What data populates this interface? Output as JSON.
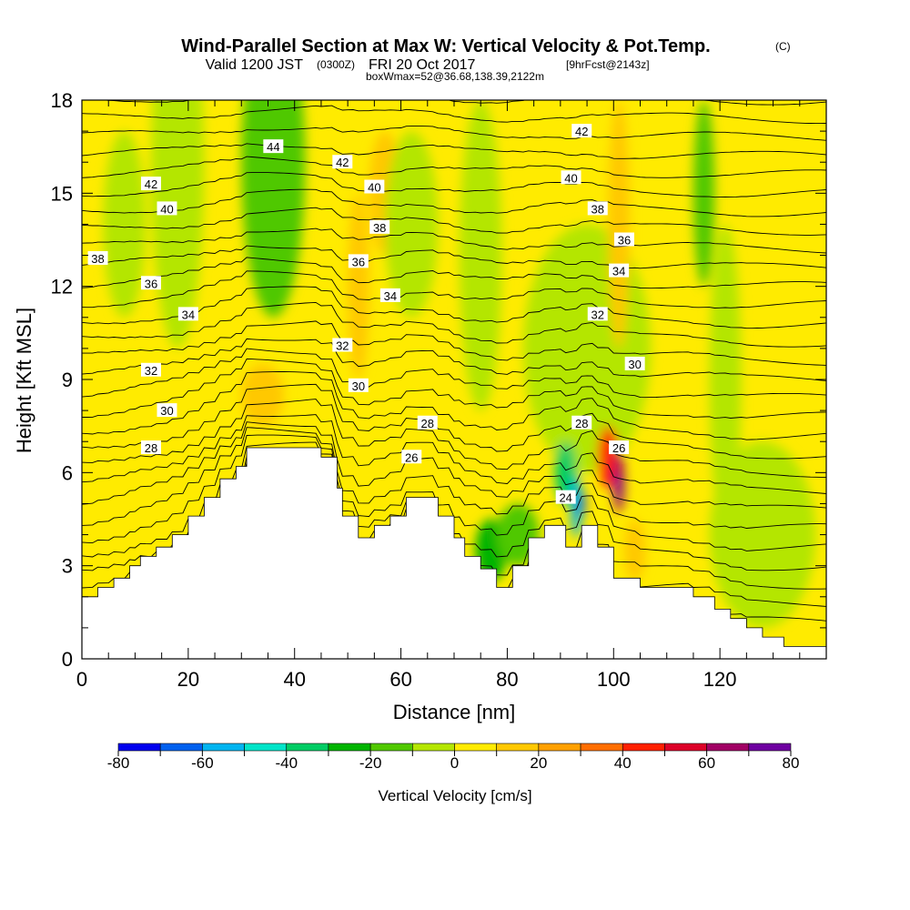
{
  "title": {
    "main": "Wind-Parallel Section at Max W: Vertical Velocity & Pot.Temp.",
    "copyright": "(C)",
    "valid_prefix": "Valid 1200 JST",
    "valid_utc": "(0300Z)",
    "valid_date": "FRI 20 Oct 2017",
    "forecast": "[9hrFcst@2143z]",
    "box": "boxWmax=52@36.68,138.39,2122m"
  },
  "colors": {
    "fill": [
      "#0000ee",
      "#0060ee",
      "#00b4f0",
      "#00e4c8",
      "#00cc64",
      "#00b400",
      "#50c800",
      "#b4e600",
      "#ffeb00",
      "#ffc800",
      "#ffa000",
      "#ff6e00",
      "#ff2000",
      "#dc0028",
      "#a00064",
      "#6e00a0"
    ],
    "background": "#ffeb00",
    "terrain": "#ffffff"
  },
  "chart_data": {
    "type": "heatmap",
    "xlabel": "Distance [nm]",
    "ylabel": "Height [Kft MSL]",
    "xlim": [
      0,
      140
    ],
    "ylim": [
      0,
      18
    ],
    "xticks": [
      "0",
      "20",
      "40",
      "60",
      "80",
      "100",
      "120"
    ],
    "yticks": [
      "0",
      "3",
      "6",
      "9",
      "12",
      "15",
      "18"
    ],
    "colorbar": {
      "label": "Vertical Velocity [cm/s]",
      "levels": [
        -80,
        -70,
        -60,
        -50,
        -40,
        -30,
        -20,
        -10,
        0,
        10,
        20,
        30,
        40,
        50,
        60,
        70,
        80
      ],
      "tick_labels": [
        "-80",
        "-60",
        "-40",
        "-20",
        "0",
        "20",
        "40",
        "60",
        "80"
      ]
    },
    "terrain": [
      [
        0,
        2
      ],
      [
        3,
        2
      ],
      [
        3,
        2.3
      ],
      [
        6,
        2.3
      ],
      [
        6,
        2.6
      ],
      [
        9,
        2.6
      ],
      [
        9,
        3
      ],
      [
        11,
        3
      ],
      [
        11,
        3.3
      ],
      [
        14,
        3.3
      ],
      [
        14,
        3.6
      ],
      [
        17,
        3.6
      ],
      [
        17,
        4
      ],
      [
        20,
        4
      ],
      [
        20,
        4.6
      ],
      [
        23,
        4.6
      ],
      [
        23,
        5.2
      ],
      [
        26,
        5.2
      ],
      [
        26,
        5.8
      ],
      [
        29,
        5.8
      ],
      [
        29,
        6.2
      ],
      [
        31,
        6.2
      ],
      [
        31,
        6.8
      ],
      [
        45,
        6.8
      ],
      [
        45,
        6.5
      ],
      [
        48,
        6.5
      ],
      [
        48,
        5.5
      ],
      [
        49,
        5.5
      ],
      [
        49,
        4.6
      ],
      [
        52,
        4.6
      ],
      [
        52,
        3.9
      ],
      [
        55,
        3.9
      ],
      [
        55,
        4.3
      ],
      [
        58,
        4.3
      ],
      [
        58,
        4.6
      ],
      [
        61,
        4.6
      ],
      [
        61,
        5.2
      ],
      [
        67,
        5.2
      ],
      [
        67,
        4.6
      ],
      [
        70,
        4.6
      ],
      [
        70,
        3.9
      ],
      [
        72,
        3.9
      ],
      [
        72,
        3.3
      ],
      [
        75,
        3.3
      ],
      [
        75,
        2.9
      ],
      [
        78,
        2.9
      ],
      [
        78,
        2.3
      ],
      [
        81,
        2.3
      ],
      [
        81,
        3
      ],
      [
        84,
        3
      ],
      [
        84,
        3.9
      ],
      [
        87,
        3.9
      ],
      [
        87,
        4.3
      ],
      [
        91,
        4.3
      ],
      [
        91,
        3.6
      ],
      [
        94,
        3.6
      ],
      [
        94,
        4.3
      ],
      [
        97,
        4.3
      ],
      [
        97,
        3.6
      ],
      [
        100,
        3.6
      ],
      [
        100,
        2.6
      ],
      [
        105,
        2.6
      ],
      [
        105,
        2.3
      ],
      [
        115,
        2.3
      ],
      [
        115,
        2
      ],
      [
        119,
        2
      ],
      [
        119,
        1.6
      ],
      [
        122,
        1.6
      ],
      [
        122,
        1.3
      ],
      [
        125,
        1.3
      ],
      [
        125,
        1
      ],
      [
        128,
        1
      ],
      [
        128,
        0.7
      ],
      [
        132,
        0.7
      ],
      [
        132,
        0.4
      ],
      [
        140,
        0.4
      ]
    ],
    "vertical_velocity_features": [
      {
        "x": 34,
        "y": 16.5,
        "rx": 4,
        "ry": 2,
        "w": -25
      },
      {
        "x": 36,
        "y": 16,
        "rx": 6,
        "ry": 5,
        "w": -12
      },
      {
        "x": 57,
        "y": 15,
        "rx": 3,
        "ry": 2,
        "w": 15
      },
      {
        "x": 34,
        "y": 8.5,
        "rx": 4,
        "ry": 1,
        "w": 18
      },
      {
        "x": 52,
        "y": 12,
        "rx": 2,
        "ry": 3,
        "w": 12
      },
      {
        "x": 62,
        "y": 14,
        "rx": 5,
        "ry": 3,
        "w": -8
      },
      {
        "x": 18,
        "y": 16,
        "rx": 5,
        "ry": 6,
        "w": -8
      },
      {
        "x": 75,
        "y": 13,
        "rx": 4,
        "ry": 5,
        "w": -8
      },
      {
        "x": 95,
        "y": 10,
        "rx": 12,
        "ry": 4,
        "w": -6
      },
      {
        "x": 101,
        "y": 14,
        "rx": 2,
        "ry": 4,
        "w": 12
      },
      {
        "x": 117,
        "y": 15,
        "rx": 2,
        "ry": 3,
        "w": -18
      },
      {
        "x": 121,
        "y": 9,
        "rx": 3,
        "ry": 5,
        "w": -8
      },
      {
        "x": 8,
        "y": 14,
        "rx": 4,
        "ry": 3,
        "w": -8
      },
      {
        "x": 77,
        "y": 3.5,
        "rx": 3,
        "ry": 1,
        "w": -25
      },
      {
        "x": 82,
        "y": 4,
        "rx": 4,
        "ry": 1,
        "w": -15
      },
      {
        "x": 91,
        "y": 6,
        "rx": 2,
        "ry": 1,
        "w": -40
      },
      {
        "x": 93,
        "y": 4.9,
        "rx": 1,
        "ry": 1,
        "w": -60
      },
      {
        "x": 94,
        "y": 5,
        "rx": 0.5,
        "ry": 0.4,
        "w": -75
      },
      {
        "x": 99,
        "y": 6.5,
        "rx": 2,
        "ry": 1,
        "w": 40
      },
      {
        "x": 101,
        "y": 5.7,
        "rx": 1,
        "ry": 1,
        "w": 65
      },
      {
        "x": 101,
        "y": 5.5,
        "rx": 0.5,
        "ry": 0.5,
        "w": 80
      },
      {
        "x": 104,
        "y": 3.5,
        "rx": 2,
        "ry": 1,
        "w": 15
      },
      {
        "x": 128,
        "y": 4,
        "rx": 10,
        "ry": 3,
        "w": -8
      }
    ],
    "theta_contours": [
      "24",
      "26",
      "28",
      "30",
      "32",
      "34",
      "36",
      "38",
      "40",
      "42",
      "44"
    ],
    "contour_labels": [
      {
        "text": "44",
        "x": 36,
        "y": 16.5
      },
      {
        "text": "42",
        "x": 13,
        "y": 15.3
      },
      {
        "text": "42",
        "x": 49,
        "y": 16
      },
      {
        "text": "42",
        "x": 94,
        "y": 17
      },
      {
        "text": "40",
        "x": 16,
        "y": 14.5
      },
      {
        "text": "40",
        "x": 55,
        "y": 15.2
      },
      {
        "text": "40",
        "x": 92,
        "y": 15.5
      },
      {
        "text": "38",
        "x": 3,
        "y": 12.9
      },
      {
        "text": "38",
        "x": 56,
        "y": 13.9
      },
      {
        "text": "38",
        "x": 97,
        "y": 14.5
      },
      {
        "text": "36",
        "x": 13,
        "y": 12.1
      },
      {
        "text": "36",
        "x": 52,
        "y": 12.8
      },
      {
        "text": "36",
        "x": 102,
        "y": 13.5
      },
      {
        "text": "34",
        "x": 20,
        "y": 11.1
      },
      {
        "text": "34",
        "x": 58,
        "y": 11.7
      },
      {
        "text": "34",
        "x": 101,
        "y": 12.5
      },
      {
        "text": "32",
        "x": 13,
        "y": 9.3
      },
      {
        "text": "32",
        "x": 49,
        "y": 10.1
      },
      {
        "text": "32",
        "x": 97,
        "y": 11.1
      },
      {
        "text": "30",
        "x": 16,
        "y": 8
      },
      {
        "text": "30",
        "x": 52,
        "y": 8.8
      },
      {
        "text": "30",
        "x": 104,
        "y": 9.5
      },
      {
        "text": "28",
        "x": 13,
        "y": 6.8
      },
      {
        "text": "28",
        "x": 65,
        "y": 7.6
      },
      {
        "text": "28",
        "x": 94,
        "y": 7.6
      },
      {
        "text": "26",
        "x": 62,
        "y": 6.5
      },
      {
        "text": "26",
        "x": 101,
        "y": 6.8
      },
      {
        "text": "24",
        "x": 91,
        "y": 5.2
      }
    ]
  }
}
